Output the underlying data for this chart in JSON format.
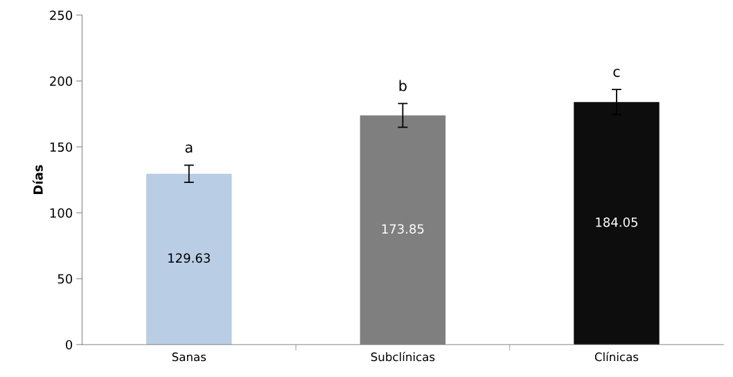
{
  "chart_data": {
    "type": "bar",
    "ylabel": "Días",
    "categories": [
      "Sanas",
      "Subclínicas",
      "Clínicas"
    ],
    "values": [
      129.63,
      173.85,
      184.05
    ],
    "colors": [
      "#b9cde5",
      "#7f7f7f",
      "#0d0d0d"
    ],
    "errors": [
      6.5,
      9,
      9.5
    ],
    "data_labels": true,
    "ylim": [
      0,
      250
    ],
    "yticks": [
      0,
      50,
      100,
      150,
      200,
      250
    ],
    "grid": false,
    "legend": false,
    "annotations": [
      "a",
      "b",
      "c"
    ]
  }
}
